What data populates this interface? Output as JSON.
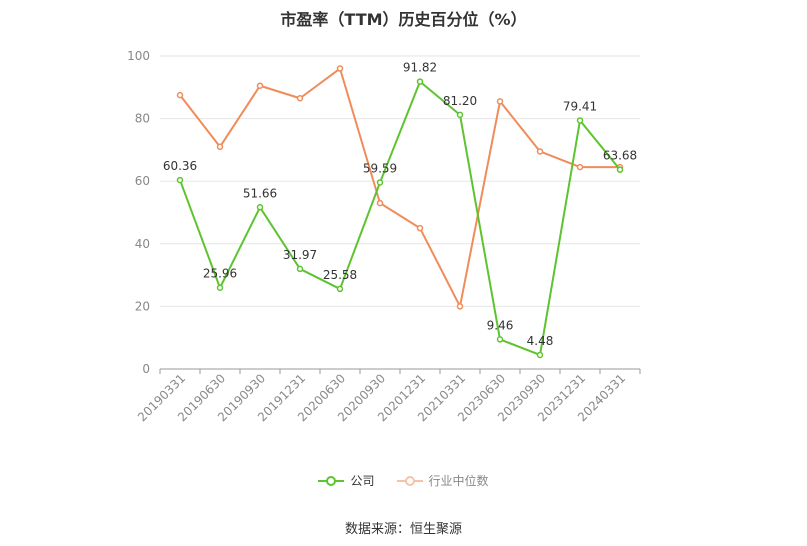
{
  "chart_data": {
    "type": "line",
    "title": "市盈率（TTM）历史百分位（%）",
    "categories": [
      "20190331",
      "20190630",
      "20190930",
      "20191231",
      "20200630",
      "20200930",
      "20201231",
      "20210331",
      "20230630",
      "20230930",
      "20231231",
      "20240331"
    ],
    "series": [
      {
        "name": "公司",
        "color": "#5dc42f",
        "values": [
          60.36,
          25.96,
          51.66,
          31.97,
          25.58,
          59.59,
          91.82,
          81.2,
          9.46,
          4.48,
          79.41,
          63.68
        ],
        "labels": [
          "60.36",
          "25.96",
          "51.66",
          "31.97",
          "25.58",
          "59.59",
          "91.82",
          "81.20",
          "9.46",
          "4.48",
          "79.41",
          "63.68"
        ]
      },
      {
        "name": "行业中位数",
        "color": "#f08c5a",
        "values": [
          87.5,
          71,
          90.5,
          86.5,
          96,
          53,
          45,
          20,
          85.5,
          69.5,
          64.5,
          64.5
        ]
      }
    ],
    "ylim": [
      0,
      100
    ],
    "yticks": [
      "0",
      "20",
      "40",
      "60",
      "80",
      "100"
    ],
    "grid": true,
    "legend_position": "bottom"
  },
  "source": "数据来源：恒生聚源"
}
